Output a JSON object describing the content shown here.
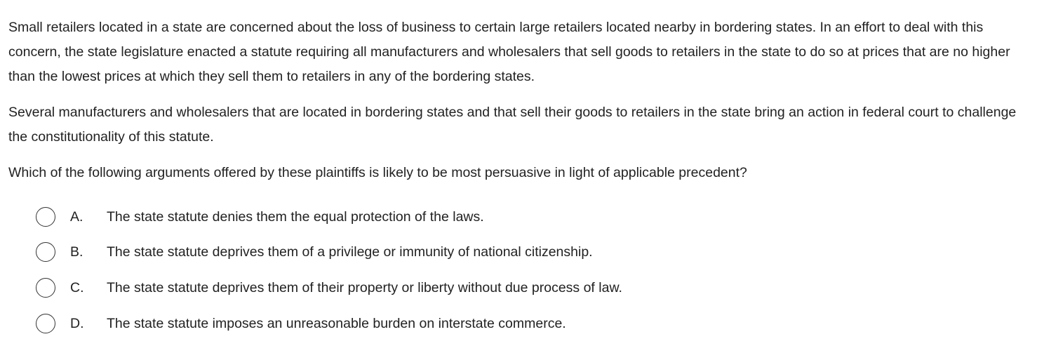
{
  "question": {
    "paragraphs": [
      "Small retailers located in a state are concerned about the loss of business to certain large retailers located nearby in bordering states.  In an effort to deal with this concern, the state legislature enacted a statute requiring all manufacturers and wholesalers that sell goods to retailers in the state to do so at prices that are no higher than the lowest prices at which they sell them to retailers in any of the bordering states.",
      "Several manufacturers and wholesalers that are located in bordering states and that sell their goods to retailers in the state bring an action in federal court to challenge the constitutionality of this statute.",
      "Which of the following arguments offered by these plaintiffs is likely to be most persuasive in light of applicable precedent?"
    ]
  },
  "options": [
    {
      "letter": "A.",
      "text": "The state statute denies them the equal protection of the laws.",
      "selected": false
    },
    {
      "letter": "B.",
      "text": "The state statute deprives them of a privilege or immunity of national citizenship.",
      "selected": false
    },
    {
      "letter": "C.",
      "text": "The state statute deprives them of their property or liberty without due process of law.",
      "selected": false
    },
    {
      "letter": "D.",
      "text": "The state statute imposes an unreasonable burden on interstate commerce.",
      "selected": false
    }
  ]
}
